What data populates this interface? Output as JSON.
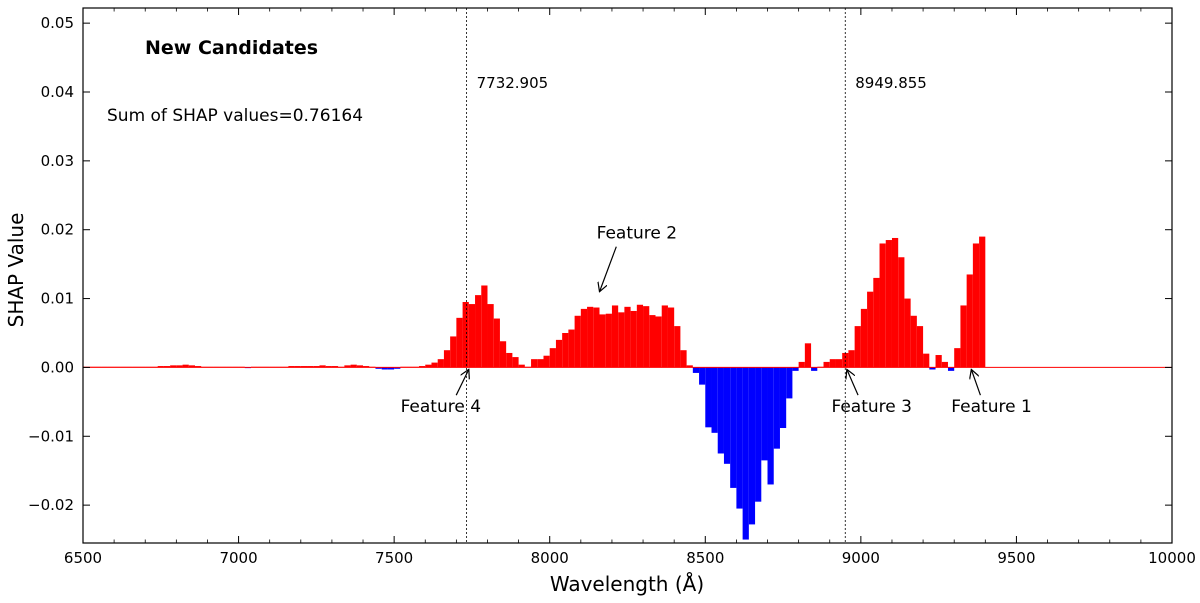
{
  "chart_data": {
    "type": "bar",
    "title": "New Candidates",
    "summary_text": "Sum of SHAP values=0.76164",
    "xlabel": "Wavelength (Å)",
    "ylabel": "SHAP Value",
    "xlim": [
      6500,
      10000
    ],
    "ylim": [
      -0.0255,
      0.0522
    ],
    "xticks": [
      6500,
      7000,
      7500,
      8000,
      8500,
      9000,
      9500,
      10000
    ],
    "xtick_labels": [
      "6500",
      "7000",
      "7500",
      "8000",
      "8500",
      "9000",
      "9500",
      "10000"
    ],
    "yticks": [
      -0.02,
      -0.01,
      0.0,
      0.01,
      0.02,
      0.03,
      0.04,
      0.05
    ],
    "ytick_labels": [
      "−0.02",
      "−0.01",
      "0.00",
      "0.01",
      "0.02",
      "0.03",
      "0.04",
      "0.05"
    ],
    "grid": false,
    "bar_width": 20,
    "positive_color": "#ff0000",
    "negative_color": "#0000ff",
    "reference_lines": [
      {
        "x": 7732.905,
        "label": "7732.905"
      },
      {
        "x": 8949.855,
        "label": "8949.855"
      }
    ],
    "annotations": [
      {
        "text": "Feature 1",
        "point": [
          9355,
          0.0
        ],
        "text_at": [
          9420,
          -0.0065
        ]
      },
      {
        "text": "Feature 2",
        "point": [
          8160,
          0.0107
        ],
        "text_at": [
          8280,
          0.0187
        ]
      },
      {
        "text": "Feature 3",
        "point": [
          8955,
          0.0
        ],
        "text_at": [
          9035,
          -0.0065
        ]
      },
      {
        "text": "Feature 4",
        "point": [
          7740,
          0.0
        ],
        "text_at": [
          7650,
          -0.0065
        ]
      }
    ],
    "bars": [
      [
        6500,
        0.0001
      ],
      [
        6520,
        0.0001
      ],
      [
        6540,
        0.0001
      ],
      [
        6560,
        0.0001
      ],
      [
        6580,
        0.0001
      ],
      [
        6600,
        0.0001
      ],
      [
        6620,
        0.0001
      ],
      [
        6640,
        0.0001
      ],
      [
        6660,
        0.0001
      ],
      [
        6680,
        0.0001
      ],
      [
        6700,
        0.0001
      ],
      [
        6720,
        0.0001
      ],
      [
        6740,
        0.0002
      ],
      [
        6760,
        0.0002
      ],
      [
        6780,
        0.0003
      ],
      [
        6800,
        0.0003
      ],
      [
        6820,
        0.0004
      ],
      [
        6840,
        0.0003
      ],
      [
        6860,
        0.0002
      ],
      [
        6880,
        0.0001
      ],
      [
        6900,
        0.0001
      ],
      [
        6920,
        0.0001
      ],
      [
        6940,
        0.0001
      ],
      [
        6960,
        0.0001
      ],
      [
        6980,
        0.0001
      ],
      [
        7000,
        0.0001
      ],
      [
        7020,
        -0.0001
      ],
      [
        7040,
        0.0001
      ],
      [
        7060,
        0.0001
      ],
      [
        7080,
        0.0001
      ],
      [
        7100,
        0.0001
      ],
      [
        7120,
        0.0001
      ],
      [
        7140,
        0.0001
      ],
      [
        7160,
        0.0002
      ],
      [
        7180,
        0.0002
      ],
      [
        7200,
        0.0002
      ],
      [
        7220,
        0.0002
      ],
      [
        7240,
        0.0002
      ],
      [
        7260,
        0.0003
      ],
      [
        7280,
        0.0002
      ],
      [
        7300,
        0.0002
      ],
      [
        7320,
        0.0001
      ],
      [
        7340,
        0.0003
      ],
      [
        7360,
        0.0004
      ],
      [
        7380,
        0.0003
      ],
      [
        7400,
        0.0002
      ],
      [
        7420,
        0.0001
      ],
      [
        7440,
        -0.0002
      ],
      [
        7460,
        -0.0003
      ],
      [
        7480,
        -0.0003
      ],
      [
        7500,
        -0.0002
      ],
      [
        7520,
        0.0001
      ],
      [
        7540,
        0.0001
      ],
      [
        7560,
        0.0001
      ],
      [
        7580,
        0.0002
      ],
      [
        7600,
        0.0004
      ],
      [
        7620,
        0.0007
      ],
      [
        7640,
        0.0012
      ],
      [
        7660,
        0.0025
      ],
      [
        7680,
        0.0045
      ],
      [
        7700,
        0.0072
      ],
      [
        7720,
        0.0095
      ],
      [
        7740,
        0.0092
      ],
      [
        7760,
        0.0105
      ],
      [
        7780,
        0.0119
      ],
      [
        7800,
        0.0092
      ],
      [
        7820,
        0.0071
      ],
      [
        7840,
        0.0038
      ],
      [
        7860,
        0.0021
      ],
      [
        7880,
        0.0015
      ],
      [
        7900,
        0.0004
      ],
      [
        7920,
        0.0001
      ],
      [
        7940,
        0.0012
      ],
      [
        7960,
        0.0012
      ],
      [
        7980,
        0.0017
      ],
      [
        8000,
        0.0028
      ],
      [
        8020,
        0.004
      ],
      [
        8040,
        0.005
      ],
      [
        8060,
        0.0055
      ],
      [
        8080,
        0.0075
      ],
      [
        8100,
        0.0085
      ],
      [
        8120,
        0.0088
      ],
      [
        8140,
        0.0087
      ],
      [
        8160,
        0.0077
      ],
      [
        8180,
        0.0078
      ],
      [
        8200,
        0.009
      ],
      [
        8220,
        0.008
      ],
      [
        8240,
        0.0088
      ],
      [
        8260,
        0.0082
      ],
      [
        8280,
        0.0091
      ],
      [
        8300,
        0.0089
      ],
      [
        8320,
        0.0076
      ],
      [
        8340,
        0.0074
      ],
      [
        8360,
        0.009
      ],
      [
        8380,
        0.0087
      ],
      [
        8400,
        0.006
      ],
      [
        8420,
        0.0025
      ],
      [
        8440,
        0.0003
      ],
      [
        8460,
        -0.0008
      ],
      [
        8480,
        -0.0025
      ],
      [
        8500,
        -0.0087
      ],
      [
        8520,
        -0.0095
      ],
      [
        8540,
        -0.0125
      ],
      [
        8560,
        -0.014
      ],
      [
        8580,
        -0.0175
      ],
      [
        8600,
        -0.0205
      ],
      [
        8620,
        -0.025
      ],
      [
        8640,
        -0.0228
      ],
      [
        8660,
        -0.0195
      ],
      [
        8680,
        -0.0135
      ],
      [
        8700,
        -0.017
      ],
      [
        8720,
        -0.0118
      ],
      [
        8740,
        -0.0088
      ],
      [
        8760,
        -0.0045
      ],
      [
        8780,
        -0.0005
      ],
      [
        8800,
        0.0008
      ],
      [
        8820,
        0.0035
      ],
      [
        8840,
        -0.0005
      ],
      [
        8860,
        0.0001
      ],
      [
        8880,
        0.0008
      ],
      [
        8900,
        0.0012
      ],
      [
        8920,
        0.0012
      ],
      [
        8940,
        0.0021
      ],
      [
        8960,
        0.0025
      ],
      [
        8980,
        0.006
      ],
      [
        9000,
        0.0085
      ],
      [
        9020,
        0.011
      ],
      [
        9040,
        0.013
      ],
      [
        9060,
        0.018
      ],
      [
        9080,
        0.0185
      ],
      [
        9100,
        0.0188
      ],
      [
        9120,
        0.016
      ],
      [
        9140,
        0.01
      ],
      [
        9160,
        0.0075
      ],
      [
        9180,
        0.006
      ],
      [
        9200,
        0.002
      ],
      [
        9220,
        -0.0003
      ],
      [
        9240,
        0.0018
      ],
      [
        9260,
        0.0008
      ],
      [
        9280,
        -0.0005
      ],
      [
        9300,
        0.0028
      ],
      [
        9320,
        0.009
      ],
      [
        9340,
        0.0135
      ],
      [
        9360,
        0.018
      ],
      [
        9380,
        0.019
      ]
    ]
  }
}
